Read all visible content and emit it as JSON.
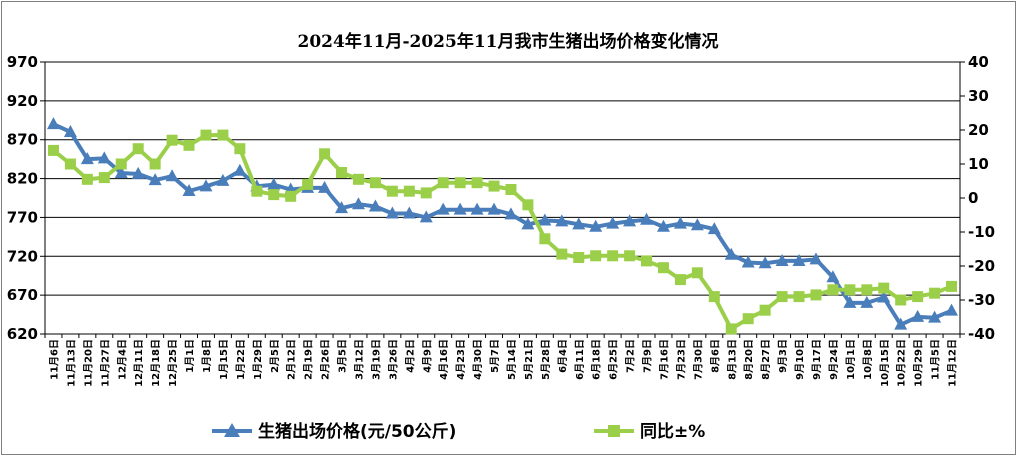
{
  "chart_data": {
    "type": "line",
    "title": "2024年11月-2025年11月我市生猪出场价格变化情况",
    "x": [
      "11月6日",
      "11月13日",
      "11月20日",
      "11月27日",
      "12月4日",
      "12月11日",
      "12月18日",
      "12月25日",
      "1月1日",
      "1月8日",
      "1月15日",
      "1月22日",
      "1月29日",
      "2月5日",
      "2月12日",
      "2月19日",
      "2月26日",
      "3月5日",
      "3月12日",
      "3月19日",
      "3月26日",
      "4月2日",
      "4月9日",
      "4月16日",
      "4月23日",
      "4月30日",
      "5月7日",
      "5月14日",
      "5月21日",
      "5月28日",
      "6月4日",
      "6月11日",
      "6月18日",
      "6月25日",
      "7月2日",
      "7月9日",
      "7月16日",
      "7月23日",
      "7月30日",
      "8月6日",
      "8月13日",
      "8月20日",
      "8月27日",
      "9月3日",
      "9月10日",
      "9月17日",
      "9月24日",
      "10月1日",
      "10月8日",
      "10月15日",
      "10月22日",
      "10月29日",
      "11月5日",
      "11月12日"
    ],
    "series": [
      {
        "name": "生猪出场价格(元/50公斤)",
        "axis": "left",
        "color": "#4a7ebb",
        "marker": "triangle",
        "values": [
          890,
          880,
          845,
          846,
          827,
          826,
          818,
          823,
          804,
          810,
          817,
          830,
          810,
          812,
          806,
          808,
          808,
          782,
          787,
          784,
          775,
          775,
          770,
          780,
          780,
          780,
          780,
          774,
          761,
          766,
          765,
          761,
          758,
          762,
          765,
          767,
          758,
          762,
          760,
          755,
          722,
          712,
          711,
          714,
          714,
          716,
          693,
          660,
          660,
          667,
          632,
          642,
          641,
          650
        ]
      },
      {
        "name": "同比±%",
        "axis": "right",
        "color": "#9bcf49",
        "marker": "square",
        "values": [
          14,
          10,
          5.5,
          6,
          10,
          14.5,
          10,
          17,
          15.5,
          18.5,
          18.5,
          14.5,
          2,
          1,
          0.5,
          4,
          13,
          7.5,
          5.5,
          4.5,
          2,
          2,
          1.5,
          4.5,
          4.5,
          4.5,
          3.5,
          2.5,
          -2,
          -12,
          -16.5,
          -17.5,
          -17,
          -17,
          -17,
          -18.5,
          -20.5,
          -24,
          -22,
          -29,
          -38.5,
          -35.5,
          -33,
          -29,
          -29,
          -28.5,
          -27,
          -27,
          -27,
          -26.5,
          -30,
          -29,
          -28,
          -26
        ]
      }
    ],
    "y_left": {
      "min": 620,
      "max": 970,
      "ticks": [
        "620",
        "670",
        "720",
        "770",
        "820",
        "870",
        "920",
        "970"
      ]
    },
    "y_right": {
      "min": -40,
      "max": 40,
      "ticks": [
        "-40",
        "-30",
        "-20",
        "-10",
        "0",
        "10",
        "20",
        "30",
        "40"
      ]
    },
    "grid": "horizontal",
    "legend_position": "bottom"
  }
}
